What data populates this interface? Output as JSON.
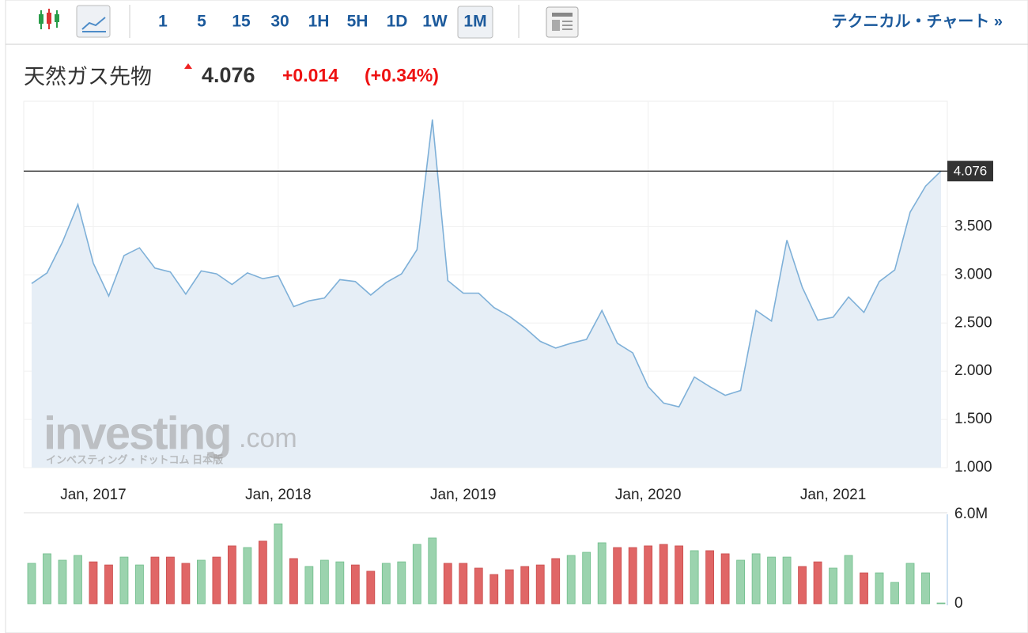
{
  "toolbar": {
    "intervals": [
      "1",
      "5",
      "15",
      "30",
      "1H",
      "5H",
      "1D",
      "1W",
      "1M"
    ],
    "selected_index": 8,
    "link": "テクニカル・チャート »"
  },
  "header": {
    "name": "天然ガス先物",
    "price": "4.076",
    "change": "+0.014",
    "change_pct": "(+0.34%)"
  },
  "watermark": {
    "brand": "investing",
    "suffix": ".com",
    "sub": "インベスティング・ドットコム 日本版"
  },
  "chart_data": [
    {
      "type": "area",
      "categories": [
        null,
        null,
        null,
        null,
        "Jan, 2017",
        null,
        null,
        null,
        null,
        null,
        null,
        null,
        null,
        null,
        null,
        null,
        "Jan, 2018",
        null,
        null,
        null,
        null,
        null,
        null,
        null,
        null,
        null,
        null,
        null,
        "Jan, 2019",
        null,
        null,
        null,
        null,
        null,
        null,
        null,
        null,
        null,
        null,
        null,
        "Jan, 2020",
        null,
        null,
        null,
        null,
        null,
        null,
        null,
        null,
        null,
        null,
        null,
        "Jan, 2021",
        null,
        null,
        null,
        null,
        null,
        null,
        null
      ],
      "series": [
        {
          "color": "#7eb0d8",
          "fill": "#e6eef6",
          "values": [
            2.91,
            3.02,
            3.34,
            3.73,
            3.12,
            2.78,
            3.2,
            3.28,
            3.07,
            3.03,
            2.8,
            3.04,
            3.01,
            2.9,
            3.02,
            2.96,
            2.99,
            2.67,
            2.73,
            2.76,
            2.95,
            2.93,
            2.79,
            2.92,
            3.01,
            3.26,
            4.61,
            2.94,
            2.81,
            2.81,
            2.66,
            2.57,
            2.45,
            2.31,
            2.24,
            2.29,
            2.33,
            2.63,
            2.29,
            2.19,
            1.84,
            1.67,
            1.63,
            1.94,
            1.84,
            1.75,
            1.8,
            2.63,
            2.52,
            3.36,
            2.87,
            2.53,
            2.56,
            2.77,
            2.61,
            2.93,
            3.05,
            3.65,
            3.92,
            4.076
          ]
        }
      ],
      "ylim": [
        1,
        4.8
      ],
      "yticks": [
        {
          "value": 1,
          "label": "1.000"
        },
        {
          "value": 1.5,
          "label": "1.500"
        },
        {
          "value": 2,
          "label": "2.000"
        },
        {
          "value": 2.5,
          "label": "2.500"
        },
        {
          "value": 3,
          "label": "3.000"
        },
        {
          "value": 3.5,
          "label": "3.500"
        }
      ],
      "grid": true
    },
    {
      "type": "bar",
      "series": [
        {
          "values": [
            2.71,
            3.35,
            2.92,
            3.24,
            2.81,
            2.6,
            3.13,
            2.6,
            3.13,
            3.13,
            2.71,
            2.92,
            3.13,
            3.88,
            3.77,
            4.2,
            5.36,
            3.03,
            2.5,
            2.92,
            2.81,
            2.6,
            2.18,
            2.71,
            2.81,
            3.98,
            4.41,
            2.71,
            2.71,
            2.39,
            1.96,
            2.28,
            2.5,
            2.6,
            3.03,
            3.24,
            3.45,
            4.09,
            3.77,
            3.77,
            3.88,
            3.98,
            3.88,
            3.56,
            3.56,
            3.35,
            2.92,
            3.35,
            3.13,
            3.13,
            2.5,
            2.81,
            2.39,
            3.24,
            2.07,
            2.07,
            1.43,
            2.71,
            2.07,
            0.05
          ],
          "colors": [
            "#9bd3ae",
            "#9bd3ae",
            "#9bd3ae",
            "#9bd3ae",
            "#e06666",
            "#e06666",
            "#9bd3ae",
            "#9bd3ae",
            "#e06666",
            "#e06666",
            "#e06666",
            "#9bd3ae",
            "#e06666",
            "#e06666",
            "#9bd3ae",
            "#e06666",
            "#9bd3ae",
            "#e06666",
            "#9bd3ae",
            "#9bd3ae",
            "#9bd3ae",
            "#e06666",
            "#e06666",
            "#9bd3ae",
            "#9bd3ae",
            "#9bd3ae",
            "#9bd3ae",
            "#e06666",
            "#e06666",
            "#e06666",
            "#e06666",
            "#e06666",
            "#e06666",
            "#e06666",
            "#e06666",
            "#9bd3ae",
            "#9bd3ae",
            "#9bd3ae",
            "#e06666",
            "#e06666",
            "#e06666",
            "#e06666",
            "#e06666",
            "#9bd3ae",
            "#e06666",
            "#e06666",
            "#9bd3ae",
            "#9bd3ae",
            "#9bd3ae",
            "#9bd3ae",
            "#e06666",
            "#e06666",
            "#9bd3ae",
            "#9bd3ae",
            "#e06666",
            "#9bd3ae",
            "#9bd3ae",
            "#9bd3ae",
            "#9bd3ae",
            "#9bd3ae"
          ]
        }
      ],
      "ylim": [
        0,
        6
      ],
      "yticks": [
        0,
        {
          "value": 6,
          "label": "6.0M"
        }
      ]
    }
  ]
}
